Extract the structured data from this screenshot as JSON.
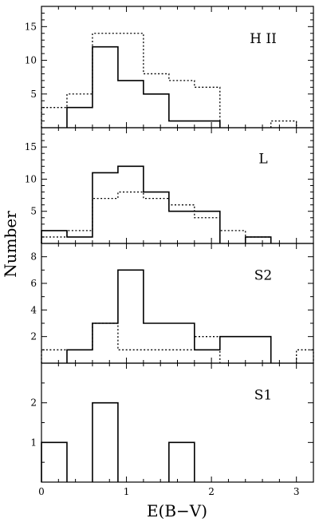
{
  "chart_data": {
    "type": "histogram",
    "xlabel": "E(B−V)",
    "ylabel": "Number",
    "xlim": [
      0,
      3.2
    ],
    "x_ticks": [
      0,
      1,
      2,
      3
    ],
    "bin_width": 0.3,
    "bin_edges": [
      0,
      0.3,
      0.6,
      0.9,
      1.2,
      1.5,
      1.8,
      2.1,
      2.4,
      2.7,
      3.0,
      3.3
    ],
    "panels": [
      {
        "label": "H II",
        "ylim": [
          0,
          18
        ],
        "y_ticks": [
          5,
          10,
          15
        ],
        "solid": [
          0,
          3,
          12,
          7,
          5,
          1,
          1,
          0,
          0,
          0,
          0
        ],
        "dotted": [
          3,
          5,
          14,
          14,
          8,
          7,
          6,
          0,
          0,
          1,
          0
        ]
      },
      {
        "label": "L",
        "ylim": [
          0,
          18
        ],
        "y_ticks": [
          5,
          10,
          15
        ],
        "solid": [
          2,
          1,
          11,
          12,
          8,
          5,
          5,
          0,
          1,
          0,
          0
        ],
        "dotted": [
          1,
          2,
          7,
          8,
          7,
          6,
          4,
          2,
          1,
          0,
          0
        ]
      },
      {
        "label": "S2",
        "ylim": [
          0,
          9
        ],
        "y_ticks": [
          2,
          4,
          6,
          8
        ],
        "solid": [
          0,
          1,
          3,
          7,
          3,
          3,
          1,
          2,
          2,
          0,
          0
        ],
        "dotted": [
          1,
          1,
          3,
          1,
          1,
          1,
          2,
          0,
          0,
          0,
          1
        ]
      },
      {
        "label": "S1",
        "ylim": [
          0,
          3
        ],
        "y_ticks": [
          1,
          2
        ],
        "solid": [
          1,
          0,
          2,
          0,
          0,
          1,
          0,
          0,
          0,
          0,
          0
        ],
        "dotted": [
          0,
          0,
          0,
          0,
          0,
          0,
          0,
          0,
          0,
          0,
          0
        ]
      }
    ]
  }
}
